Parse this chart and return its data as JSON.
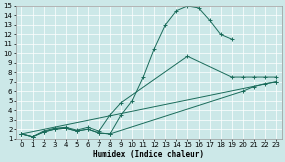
{
  "xlabel": "Humidex (Indice chaleur)",
  "bg_color": "#cce8e8",
  "grid_color": "#ffffff",
  "line_color": "#1a6b5a",
  "xlim": [
    -0.5,
    23.5
  ],
  "ylim": [
    1,
    15
  ],
  "xticks": [
    0,
    1,
    2,
    3,
    4,
    5,
    6,
    7,
    8,
    9,
    10,
    11,
    12,
    13,
    14,
    15,
    16,
    17,
    18,
    19,
    20,
    21,
    22,
    23
  ],
  "yticks": [
    1,
    2,
    3,
    4,
    5,
    6,
    7,
    8,
    9,
    10,
    11,
    12,
    13,
    14,
    15
  ],
  "line1_x": [
    0,
    1,
    2,
    3,
    4,
    5,
    6,
    7,
    8,
    9,
    10,
    11,
    12,
    13,
    14,
    15,
    16,
    17,
    18,
    19
  ],
  "line1_y": [
    1.5,
    1.2,
    1.7,
    2.0,
    2.1,
    1.8,
    2.0,
    1.6,
    1.5,
    3.5,
    5.0,
    7.5,
    10.5,
    13.0,
    14.5,
    15.0,
    14.8,
    13.5,
    12.0,
    11.5
  ],
  "line2_x": [
    0,
    1,
    2,
    3,
    4,
    5,
    6,
    7,
    8,
    9,
    15,
    19,
    20,
    21,
    22,
    23
  ],
  "line2_y": [
    1.5,
    1.2,
    1.8,
    2.1,
    2.2,
    1.9,
    2.2,
    1.8,
    3.5,
    4.8,
    9.7,
    7.5,
    7.5,
    7.5,
    7.5,
    7.5
  ],
  "line3_x": [
    0,
    1,
    2,
    3,
    4,
    5,
    6,
    7,
    8,
    20,
    21,
    22,
    23
  ],
  "line3_y": [
    1.5,
    1.2,
    1.7,
    2.0,
    2.1,
    1.8,
    2.0,
    1.6,
    1.5,
    6.0,
    6.5,
    6.8,
    7.0
  ],
  "line4_x": [
    0,
    23
  ],
  "line4_y": [
    1.5,
    7.0
  ],
  "xlabel_fontsize": 5.5,
  "tick_fontsize": 5.0
}
